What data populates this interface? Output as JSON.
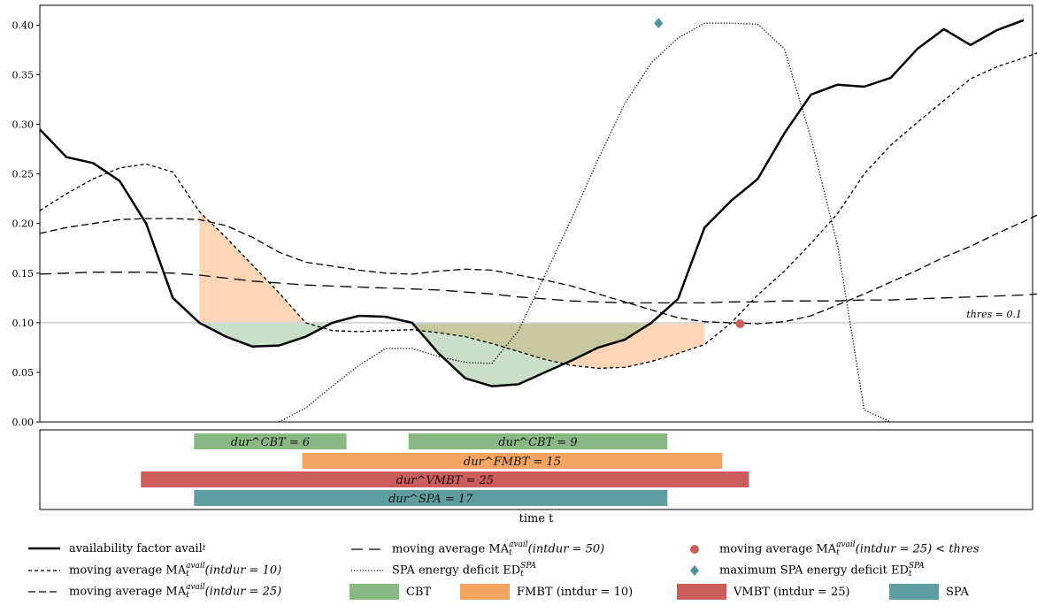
{
  "chart_data": {
    "type": "line",
    "xlabel": "time t",
    "ylim": [
      0,
      0.42
    ],
    "yticks": [
      "0.00",
      "0.05",
      "0.10",
      "0.15",
      "0.20",
      "0.25",
      "0.30",
      "0.35",
      "0.40"
    ],
    "threshold": {
      "value": 0.1,
      "label": "thres = 0.1"
    },
    "x_range": [
      0,
      56
    ],
    "series": [
      {
        "key": "avail",
        "name": "availability factor avail_t",
        "style": "solid",
        "values": [
          0.295,
          0.267,
          0.261,
          0.243,
          0.2,
          0.125,
          0.1,
          0.086,
          0.076,
          0.077,
          0.086,
          0.1,
          0.107,
          0.106,
          0.1,
          0.069,
          0.044,
          0.036,
          0.038,
          0.05,
          0.062,
          0.075,
          0.083,
          0.1,
          0.124,
          0.196,
          0.223,
          0.245,
          0.291,
          0.33,
          0.34,
          0.338,
          0.347,
          0.376,
          0.396,
          0.38,
          0.395,
          0.405
        ]
      },
      {
        "key": "ma10",
        "name": "moving average MA_t^avail(intdur = 10)",
        "style": "dashed-short",
        "values": [
          0.213,
          0.23,
          0.245,
          0.256,
          0.26,
          0.252,
          0.212,
          0.186,
          0.158,
          0.13,
          0.1,
          0.092,
          0.091,
          0.092,
          0.093,
          0.09,
          0.086,
          0.079,
          0.071,
          0.063,
          0.057,
          0.054,
          0.055,
          0.061,
          0.069,
          0.078,
          0.1,
          0.128,
          0.152,
          0.18,
          0.21,
          0.25,
          0.279,
          0.302,
          0.324,
          0.346,
          0.358,
          0.367,
          0.377
        ]
      },
      {
        "key": "ma25",
        "name": "moving average MA_t^avail(intdur = 25)",
        "style": "dashed-medium",
        "values": [
          0.19,
          0.196,
          0.2,
          0.204,
          0.205,
          0.205,
          0.204,
          0.198,
          0.186,
          0.171,
          0.161,
          0.157,
          0.153,
          0.15,
          0.149,
          0.152,
          0.154,
          0.153,
          0.148,
          0.143,
          0.137,
          0.129,
          0.121,
          0.113,
          0.105,
          0.101,
          0.1,
          0.099,
          0.101,
          0.107,
          0.118,
          0.129,
          0.141,
          0.153,
          0.166,
          0.177,
          0.19,
          0.202,
          0.215
        ]
      },
      {
        "key": "ma50",
        "name": "moving average MA_t^avail(intdur = 50)",
        "style": "dashed-long",
        "values": [
          0.149,
          0.15,
          0.151,
          0.151,
          0.151,
          0.15,
          0.148,
          0.145,
          0.142,
          0.14,
          0.138,
          0.137,
          0.136,
          0.135,
          0.134,
          0.133,
          0.131,
          0.129,
          0.126,
          0.124,
          0.122,
          0.121,
          0.12,
          0.12,
          0.12,
          0.12,
          0.121,
          0.121,
          0.122,
          0.122,
          0.122,
          0.123,
          0.123,
          0.124,
          0.125,
          0.126,
          0.127,
          0.128,
          0.13
        ]
      },
      {
        "key": "ed",
        "name": "SPA energy deficit ED_t^SPA",
        "style": "dotted",
        "values": [
          null,
          null,
          null,
          null,
          null,
          null,
          null,
          null,
          null,
          0.0,
          0.014,
          0.036,
          0.057,
          0.074,
          0.074,
          0.066,
          0.06,
          0.059,
          0.092,
          0.148,
          0.205,
          0.265,
          0.321,
          0.362,
          0.387,
          0.402,
          0.402,
          0.401,
          0.376,
          0.286,
          0.178,
          0.012,
          0.0
        ]
      }
    ],
    "markers": [
      {
        "key": "ma25-below",
        "name": "moving average MA_t^avail(intdur = 25) < thres",
        "shape": "circle",
        "color": "#cd5c5c",
        "x": 39.5,
        "y": 0.099
      },
      {
        "key": "ed-max",
        "name": "maximum SPA energy deficit ED_t^SPA",
        "shape": "diamond",
        "color": "#4f9496",
        "x": 34.9,
        "y": 0.402
      }
    ],
    "events": [
      {
        "key": "cbt1",
        "type": "CBT",
        "label": "dur^CBT = 6",
        "row": 0,
        "start": 8.7,
        "end": 17.3,
        "color": "#8ab885"
      },
      {
        "key": "cbt2",
        "type": "CBT",
        "label": "dur^CBT = 9",
        "row": 0,
        "start": 20.8,
        "end": 35.4,
        "color": "#8ab885"
      },
      {
        "key": "fmbt",
        "type": "FMBT (intdur = 10)",
        "label": "dur^FMBT = 15",
        "row": 1,
        "start": 14.8,
        "end": 38.5,
        "color": "#f4a460"
      },
      {
        "key": "vmbt",
        "type": "VMBT (intdur = 25)",
        "label": "dur^VMBT = 25",
        "row": 2,
        "start": 5.7,
        "end": 40.0,
        "color": "#cd5c5c"
      },
      {
        "key": "spa",
        "type": "SPA",
        "label": "dur^SPA = 17",
        "row": 3,
        "start": 8.7,
        "end": 35.4,
        "color": "#5f9ea0"
      }
    ],
    "fills": [
      {
        "key": "cbt-deficit",
        "color": "#8ab885",
        "opacity": 0.45
      },
      {
        "key": "fmbt-deficit",
        "color": "#f4a460",
        "opacity": 0.45
      }
    ]
  },
  "legend": {
    "items": [
      {
        "key": "avail",
        "label": "availability factor avail",
        "sub": "t",
        "kind": "line",
        "dash": "",
        "width": 2.5
      },
      {
        "key": "ma10",
        "label": "moving average MA",
        "sup": "avail",
        "sub": "t",
        "tail": "(intdur = 10)",
        "kind": "line",
        "dash": "4 3",
        "width": 1.3
      },
      {
        "key": "ma25",
        "label": "moving average MA",
        "sup": "avail",
        "sub": "t",
        "tail": "(intdur = 25)",
        "kind": "line",
        "dash": "8 4",
        "width": 1.3
      },
      {
        "key": "ma50",
        "label": "moving average MA",
        "sup": "avail",
        "sub": "t",
        "tail": "(intdur = 50)",
        "kind": "line",
        "dash": "13 7",
        "width": 1.3
      },
      {
        "key": "ed",
        "label": "SPA energy deficit ED",
        "sup": "SPA",
        "sub": "t",
        "kind": "line",
        "dash": "1.2 2",
        "width": 1.3
      },
      {
        "key": "cbt",
        "label": "CBT",
        "kind": "patch",
        "color": "#8ab885"
      },
      {
        "key": "ma25-below",
        "label": "moving average MA",
        "sup": "avail",
        "sub": "t",
        "tail": "(intdur = 25) < thres",
        "kind": "circle",
        "color": "#cd5c5c"
      },
      {
        "key": "ed-max",
        "label": "maximum SPA energy deficit ED",
        "sup": "SPA",
        "sub": "t",
        "kind": "diamond",
        "color": "#4f9496"
      },
      {
        "key": "fmbt",
        "label": "FMBT (intdur = 10)",
        "kind": "patch",
        "color": "#f4a460"
      },
      {
        "key": "vmbt",
        "label": "VMBT (intdur = 25)",
        "kind": "patch",
        "color": "#cd5c5c"
      },
      {
        "key": "spa",
        "label": "SPA",
        "kind": "patch",
        "color": "#5f9ea0"
      }
    ]
  }
}
